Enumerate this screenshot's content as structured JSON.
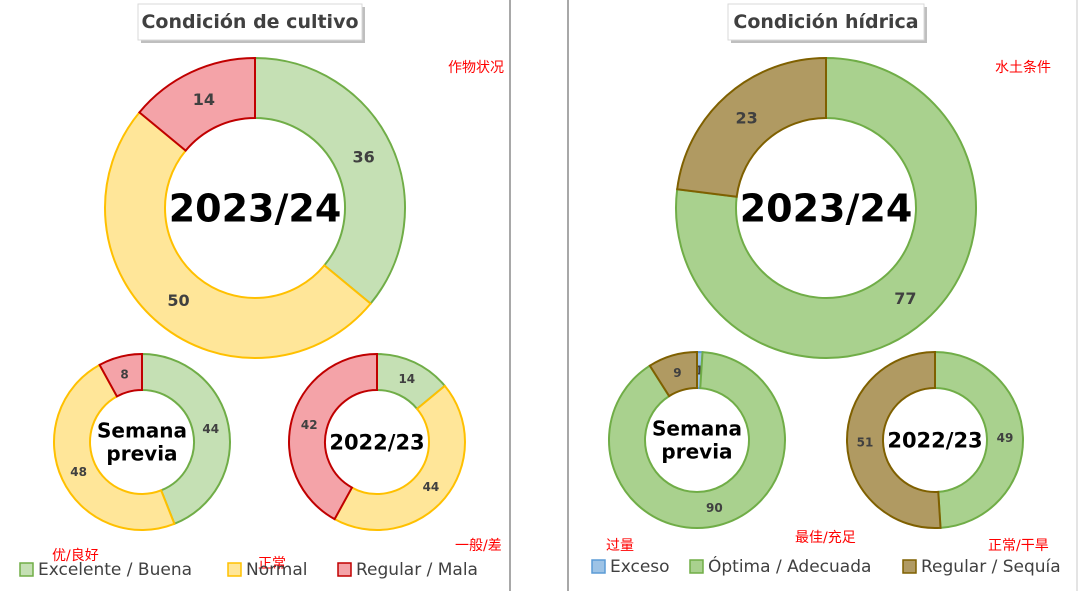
{
  "chart_data": [
    {
      "type": "pie",
      "title": "Condición de cultivo",
      "annotation": "作物状况",
      "legend": [
        {
          "label": "Excelente / Buena",
          "annotation": "优/良好",
          "color": "#c5e0b4",
          "stroke": "#70ad47"
        },
        {
          "label": "Normal",
          "annotation": "正常",
          "color": "#ffe699",
          "stroke": "#ffc000"
        },
        {
          "label": "Regular / Mala",
          "annotation": "一般/差",
          "color": "#f4a3a8",
          "stroke": "#c00000"
        }
      ],
      "donuts": [
        {
          "center_label": [
            "2023/24"
          ],
          "values": [
            36,
            50,
            14
          ]
        },
        {
          "center_label": [
            "Semana",
            "previa"
          ],
          "values": [
            44,
            48,
            8
          ]
        },
        {
          "center_label": [
            "2022/23"
          ],
          "values": [
            14,
            44,
            42
          ]
        }
      ]
    },
    {
      "type": "pie",
      "title": "Condición hídrica",
      "annotation": "水土条件",
      "legend": [
        {
          "label": "Exceso",
          "annotation": "过量",
          "color": "#9dc3e6",
          "stroke": "#5b9bd5"
        },
        {
          "label": "Óptima / Adecuada",
          "annotation": "最佳/充足",
          "color": "#a9d18e",
          "stroke": "#70ad47"
        },
        {
          "label": "Regular / Sequía",
          "annotation": "正常/干旱",
          "color": "#b09a62",
          "stroke": "#7f6000"
        }
      ],
      "donuts": [
        {
          "center_label": [
            "2023/24"
          ],
          "values": [
            0,
            77,
            23
          ],
          "hidden_labels": [
            0
          ]
        },
        {
          "center_label": [
            "Semana",
            "previa"
          ],
          "values": [
            1,
            90,
            9
          ]
        },
        {
          "center_label": [
            "2022/23"
          ],
          "values": [
            0,
            49,
            51
          ],
          "hidden_labels": [
            0
          ]
        }
      ]
    }
  ]
}
